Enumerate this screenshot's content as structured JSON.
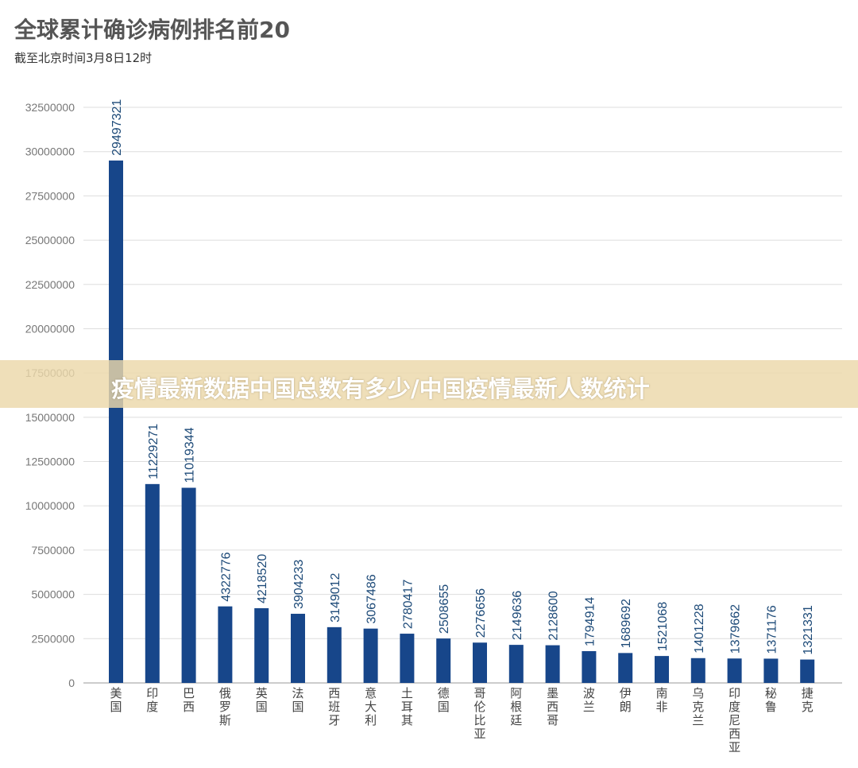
{
  "chart_data": {
    "type": "bar",
    "title": "全球累计确诊病例排名前20",
    "subtitle": "截至北京时间3月8日12时",
    "categories": [
      "美国",
      "印度",
      "巴西",
      "俄罗斯",
      "英国",
      "法国",
      "西班牙",
      "意大利",
      "土耳其",
      "德国",
      "哥伦比亚",
      "阿根廷",
      "墨西哥",
      "波兰",
      "伊朗",
      "南非",
      "乌克兰",
      "印度尼西亚",
      "秘鲁",
      "捷克"
    ],
    "values": [
      29497321,
      11229271,
      11019344,
      4322776,
      4218520,
      3904233,
      3149012,
      3067486,
      2780417,
      2508655,
      2276656,
      2149636,
      2128600,
      1794914,
      1689692,
      1521068,
      1401228,
      1379662,
      1371176,
      1321331
    ],
    "yticks": [
      0,
      2500000,
      5000000,
      7500000,
      10000000,
      12500000,
      15000000,
      17500000,
      20000000,
      22500000,
      25000000,
      27500000,
      30000000,
      32500000
    ],
    "ylim": [
      0,
      32500000
    ],
    "grid": true,
    "bar_color": "#17468a",
    "label_color": "#1d4a78",
    "data_labels": true
  },
  "banner": {
    "text": "疫情最新数据中国总数有多少/中国疫情最新人数统计",
    "color": "#ecd8aa"
  }
}
